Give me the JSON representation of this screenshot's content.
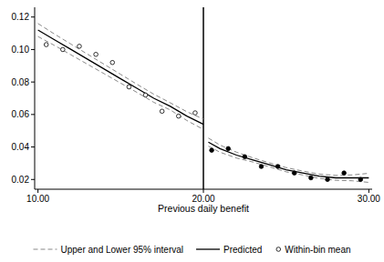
{
  "chart_data": {
    "type": "scatter",
    "x_label": "Previous daily benefit",
    "xlim": [
      9.8,
      30.2
    ],
    "xticks": [
      {
        "value": 10,
        "label": "10.00"
      },
      {
        "value": 20,
        "label": "20.00"
      },
      {
        "value": 30,
        "label": "30.00"
      }
    ],
    "ylim": [
      0.014,
      0.126
    ],
    "yticks": [
      0.02,
      0.04,
      0.06,
      0.08,
      {
        "value": 0.1,
        "label": "0.10"
      },
      0.12
    ],
    "grid": false,
    "legend": "bottom",
    "cutoff": 20,
    "series": [
      {
        "name": "Upper and Lower 95% interval",
        "type": "line",
        "line_style": "dashed",
        "color": "#888888",
        "x": [
          10,
          11,
          12,
          13,
          14,
          15,
          16,
          17,
          18,
          19,
          20,
          20.15,
          20.3,
          21,
          22,
          23,
          24,
          25,
          26,
          27,
          28,
          29,
          30
        ],
        "upper": [
          0.116,
          0.1095,
          0.1033,
          0.0971,
          0.0909,
          0.0847,
          0.0785,
          0.0725,
          0.0672,
          0.0617,
          0.0572,
          null,
          0.0455,
          0.0412,
          0.0368,
          0.0333,
          0.0302,
          0.0273,
          0.0252,
          0.0233,
          0.0225,
          0.0228,
          0.0238
        ],
        "lower": [
          0.108,
          0.1025,
          0.0967,
          0.0909,
          0.0851,
          0.0793,
          0.0735,
          0.0675,
          0.0628,
          0.0563,
          0.0508,
          null,
          0.0405,
          0.0368,
          0.0332,
          0.0307,
          0.0278,
          0.0247,
          0.0228,
          0.0207,
          0.0195,
          0.0192,
          0.0182
        ]
      },
      {
        "name": "Predicted",
        "type": "line",
        "line_style": "solid",
        "color": "#000000",
        "x": [
          10,
          11,
          12,
          13,
          14,
          15,
          16,
          17,
          18,
          19,
          20,
          20.15,
          20.3,
          21,
          22,
          23,
          24,
          25,
          26,
          27,
          28,
          29,
          30
        ],
        "values": [
          0.112,
          0.106,
          0.1,
          0.094,
          0.088,
          0.082,
          0.076,
          0.07,
          0.065,
          0.059,
          0.054,
          null,
          0.043,
          0.039,
          0.035,
          0.032,
          0.029,
          0.026,
          0.024,
          0.022,
          0.021,
          0.021,
          0.021
        ]
      },
      {
        "name": "Within-bin mean",
        "type": "scatter",
        "marker": "circle",
        "color": "#000000",
        "x": [
          10.5,
          11.5,
          12.5,
          13.5,
          14.5,
          15.5,
          16.5,
          17.5,
          18.5,
          19.5,
          20.5,
          21.5,
          22.5,
          23.5,
          24.5,
          25.5,
          26.5,
          27.5,
          28.5,
          29.5
        ],
        "values": [
          0.103,
          0.1,
          0.102,
          0.097,
          0.092,
          0.077,
          0.072,
          0.062,
          0.059,
          0.061,
          0.038,
          0.039,
          0.034,
          0.028,
          0.028,
          0.024,
          0.021,
          0.02,
          0.024,
          0.02
        ],
        "colors": [
          "#ffffff",
          "#ffffff",
          "#ffffff",
          "#ffffff",
          "#ffffff",
          "#ffffff",
          "#ffffff",
          "#ffffff",
          "#ffffff",
          "#ffffff",
          "#000000",
          "#000000",
          "#000000",
          "#000000",
          "#000000",
          "#000000",
          "#000000",
          "#000000",
          "#000000",
          "#000000"
        ]
      }
    ]
  }
}
